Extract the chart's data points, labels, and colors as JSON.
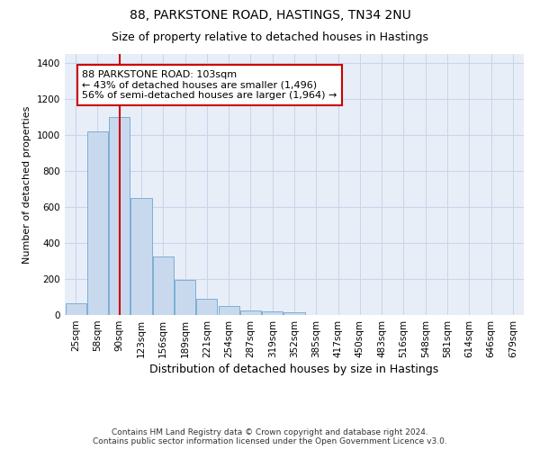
{
  "title1": "88, PARKSTONE ROAD, HASTINGS, TN34 2NU",
  "title2": "Size of property relative to detached houses in Hastings",
  "xlabel": "Distribution of detached houses by size in Hastings",
  "ylabel": "Number of detached properties",
  "categories": [
    "25sqm",
    "58sqm",
    "90sqm",
    "123sqm",
    "156sqm",
    "189sqm",
    "221sqm",
    "254sqm",
    "287sqm",
    "319sqm",
    "352sqm",
    "385sqm",
    "417sqm",
    "450sqm",
    "483sqm",
    "516sqm",
    "548sqm",
    "581sqm",
    "614sqm",
    "646sqm",
    "679sqm"
  ],
  "bar_values": [
    65,
    1020,
    1100,
    650,
    325,
    195,
    90,
    48,
    25,
    20,
    15,
    0,
    0,
    0,
    0,
    0,
    0,
    0,
    0,
    0,
    0
  ],
  "bar_color": "#c8d9ee",
  "bar_edge_color": "#7bafd4",
  "vline_color": "#cc0000",
  "annotation_text": "88 PARKSTONE ROAD: 103sqm\n← 43% of detached houses are smaller (1,496)\n56% of semi-detached houses are larger (1,964) →",
  "annotation_box_color": "#ffffff",
  "annotation_box_edge_color": "#cc0000",
  "ylim": [
    0,
    1450
  ],
  "yticks": [
    0,
    200,
    400,
    600,
    800,
    1000,
    1200,
    1400
  ],
  "grid_color": "#c8d4e8",
  "background_color": "#e8eef8",
  "footer_text": "Contains HM Land Registry data © Crown copyright and database right 2024.\nContains public sector information licensed under the Open Government Licence v3.0.",
  "title1_fontsize": 10,
  "title2_fontsize": 9,
  "xlabel_fontsize": 9,
  "ylabel_fontsize": 8,
  "annotation_fontsize": 8,
  "footer_fontsize": 6.5,
  "tick_fontsize": 7.5
}
